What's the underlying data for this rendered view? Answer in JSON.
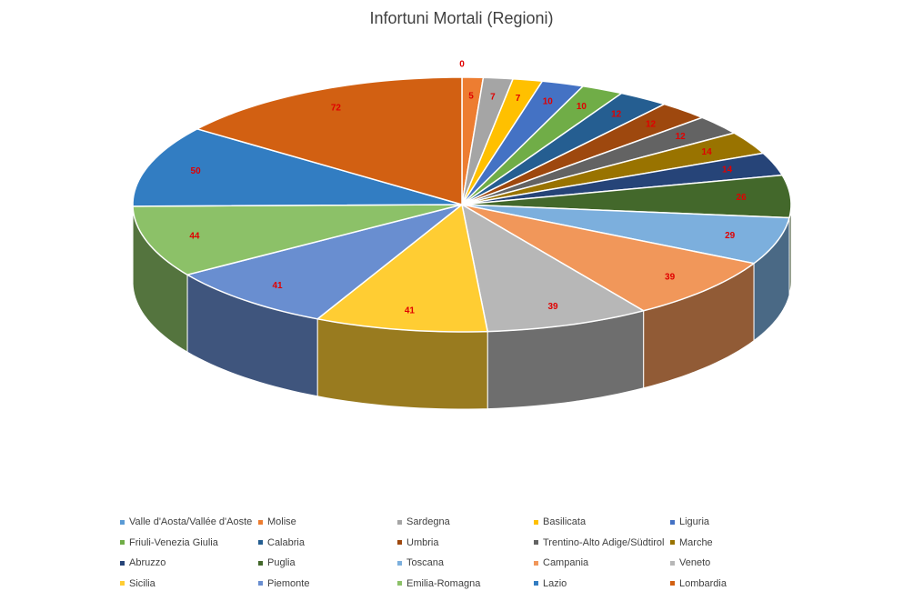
{
  "chart_data": {
    "type": "pie",
    "title": "Infortuni Mortali (Regioni)",
    "series": [
      {
        "name": "Valle d'Aosta/Vallée d'Aoste",
        "value": 0,
        "color": "#5b9bd5"
      },
      {
        "name": "Molise",
        "value": 5,
        "color": "#ed7d31"
      },
      {
        "name": "Sardegna",
        "value": 7,
        "color": "#a5a5a5"
      },
      {
        "name": "Basilicata",
        "value": 7,
        "color": "#ffc000"
      },
      {
        "name": "Liguria",
        "value": 10,
        "color": "#4472c4"
      },
      {
        "name": "Friuli-Venezia Giulia",
        "value": 10,
        "color": "#70ad47"
      },
      {
        "name": "Calabria",
        "value": 12,
        "color": "#255e91"
      },
      {
        "name": "Umbria",
        "value": 12,
        "color": "#9e480e"
      },
      {
        "name": "Trentino-Alto Adige/Südtirol",
        "value": 12,
        "color": "#636363"
      },
      {
        "name": "Marche",
        "value": 14,
        "color": "#997300"
      },
      {
        "name": "Abruzzo",
        "value": 14,
        "color": "#264478"
      },
      {
        "name": "Puglia",
        "value": 26,
        "color": "#43682b"
      },
      {
        "name": "Toscana",
        "value": 29,
        "color": "#7cafdd"
      },
      {
        "name": "Campania",
        "value": 39,
        "color": "#f1975a"
      },
      {
        "name": "Veneto",
        "value": 39,
        "color": "#b7b7b7"
      },
      {
        "name": "Sicilia",
        "value": 41,
        "color": "#ffcd33"
      },
      {
        "name": "Piemonte",
        "value": 41,
        "color": "#698ed0"
      },
      {
        "name": "Emilia-Romagna",
        "value": 44,
        "color": "#8cc168"
      },
      {
        "name": "Lazio",
        "value": 50,
        "color": "#327dc2"
      },
      {
        "name": "Lombardia",
        "value": 72,
        "color": "#d26012"
      }
    ],
    "label_color": "#e00000",
    "legend_position": "bottom",
    "style": "3d-pie"
  }
}
